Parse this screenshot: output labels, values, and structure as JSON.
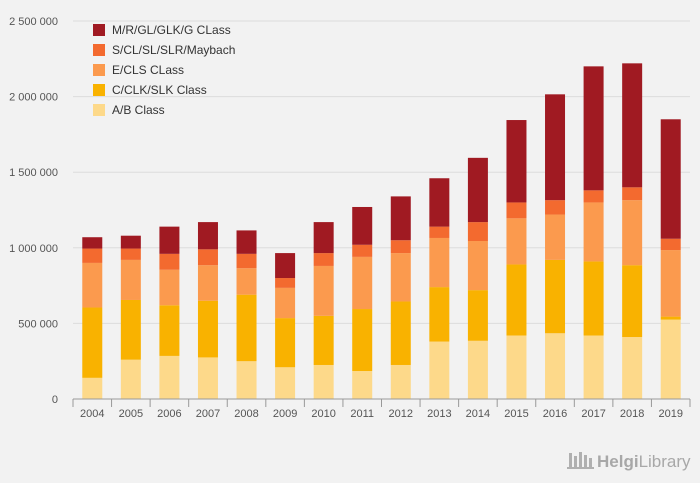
{
  "chart_data": {
    "type": "bar",
    "stacked": true,
    "categories": [
      "2004",
      "2005",
      "2006",
      "2007",
      "2008",
      "2009",
      "2010",
      "2011",
      "2012",
      "2013",
      "2014",
      "2015",
      "2016",
      "2017",
      "2018",
      "2019"
    ],
    "ylim": [
      0,
      2500000
    ],
    "yticks": [
      0,
      500000,
      1000000,
      1500000,
      2000000,
      2500000
    ],
    "ytick_labels": [
      "0",
      "500 000",
      "1 000 000",
      "1 500 000",
      "2 000 000",
      "2 500 000"
    ],
    "grid": true,
    "legend_position": "top-left",
    "series": [
      {
        "name": "A/B Class",
        "color": "#fdd98a",
        "values": [
          140000,
          260000,
          285000,
          275000,
          250000,
          210000,
          225000,
          185000,
          225000,
          380000,
          385000,
          420000,
          435000,
          420000,
          410000,
          525000
        ]
      },
      {
        "name": "C/CLK/SLK Class",
        "color": "#f9b200",
        "values": [
          465000,
          395000,
          335000,
          375000,
          440000,
          325000,
          325000,
          410000,
          420000,
          360000,
          335000,
          470000,
          485000,
          490000,
          475000,
          20000
        ]
      },
      {
        "name": "E/CLS CLass",
        "color": "#fb9a4e",
        "values": [
          295000,
          265000,
          235000,
          235000,
          175000,
          200000,
          330000,
          345000,
          320000,
          325000,
          325000,
          305000,
          300000,
          390000,
          430000,
          440000
        ]
      },
      {
        "name": "S/CL/SL/SLR/Maybach",
        "color": "#f36a2f",
        "values": [
          95000,
          75000,
          105000,
          105000,
          95000,
          65000,
          85000,
          80000,
          85000,
          75000,
          125000,
          105000,
          95000,
          80000,
          85000,
          75000
        ]
      },
      {
        "name": "M/R/GL/GLK/G CLass",
        "color": "#a01a22",
        "values": [
          75000,
          85000,
          180000,
          180000,
          155000,
          165000,
          205000,
          250000,
          290000,
          320000,
          425000,
          545000,
          700000,
          820000,
          820000,
          790000
        ]
      }
    ]
  },
  "brand": {
    "name": "HelgiLibrary",
    "name_bold": "Helgi",
    "name_light": "Library",
    "logo_icon": "bookshelf-icon"
  }
}
